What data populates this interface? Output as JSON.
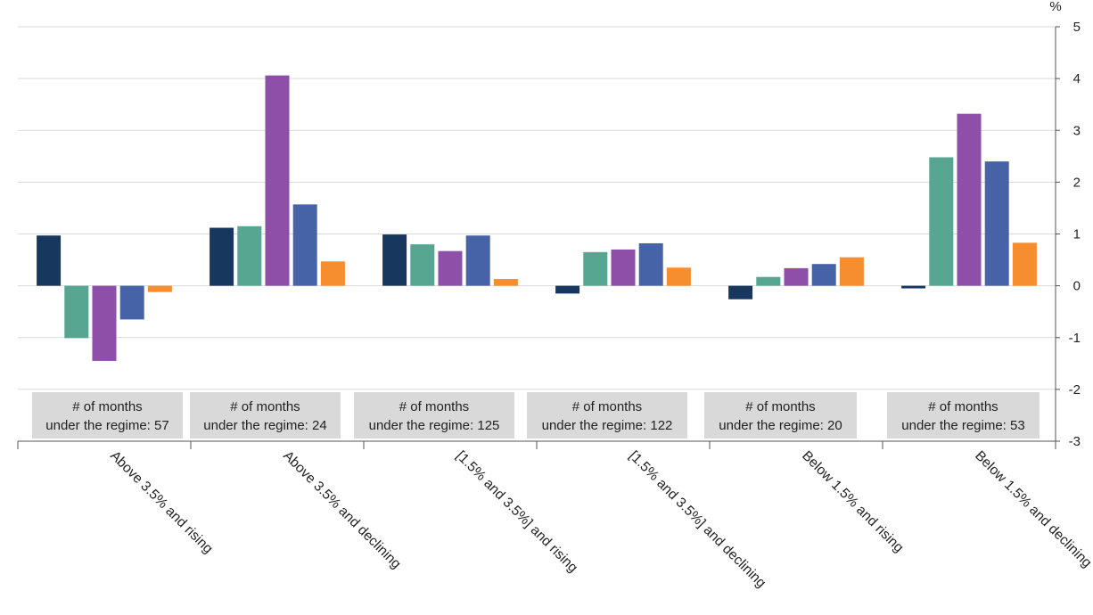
{
  "chart_data": {
    "type": "bar",
    "y_unit": "%",
    "ylim": [
      -3,
      5
    ],
    "yticks": [
      5,
      4,
      3,
      2,
      1,
      0,
      -1,
      -2,
      -3
    ],
    "y_axis_side": "right",
    "grid": true,
    "legend": "none",
    "categories": [
      "Above 3.5% and rising",
      "Above 3.5% and declining",
      "[1.5% and 3.5%] and rising",
      "[1.5% and 3.5%] and declining",
      "Below 1.5% and rising",
      "Below 1.5% and declining"
    ],
    "series": [
      {
        "color": "#17375e",
        "values": [
          0.97,
          1.12,
          0.99,
          -0.15,
          -0.26,
          -0.05
        ]
      },
      {
        "color": "#56a692",
        "values": [
          -1.01,
          1.15,
          0.8,
          0.65,
          0.17,
          2.48
        ]
      },
      {
        "color": "#8e4fa8",
        "values": [
          -1.45,
          4.06,
          0.67,
          0.7,
          0.34,
          3.32
        ]
      },
      {
        "color": "#4563a6",
        "values": [
          -0.65,
          1.57,
          0.97,
          0.82,
          0.42,
          2.4
        ]
      },
      {
        "color": "#f68d2e",
        "values": [
          -0.12,
          0.47,
          0.13,
          0.35,
          0.55,
          0.83
        ]
      }
    ],
    "annotations": [
      {
        "line1": "# of months",
        "line2": "under the regime: 57"
      },
      {
        "line1": "# of months",
        "line2": "under the regime: 24"
      },
      {
        "line1": "# of months",
        "line2": "under the regime: 125"
      },
      {
        "line1": "# of months",
        "line2": "under the regime: 122"
      },
      {
        "line1": "# of months",
        "line2": "under the regime: 20"
      },
      {
        "line1": "# of months",
        "line2": "under the regime: 53"
      }
    ]
  },
  "colors": {
    "grid": "#d9d9d9",
    "axis": "#555555",
    "annotation_box": "#d9d9d9"
  }
}
